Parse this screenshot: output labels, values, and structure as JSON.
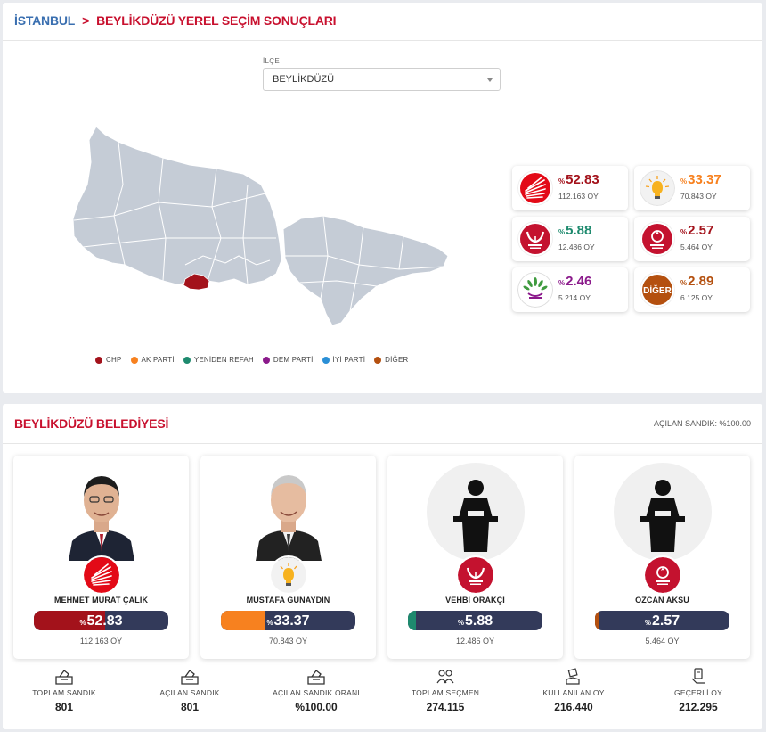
{
  "breadcrumb": {
    "city": "İSTANBUL",
    "separator": ">",
    "title": "BEYLİKDÜZÜ YEREL SEÇİM SONUÇLARI"
  },
  "district_select": {
    "label": "İLÇE",
    "value": "BEYLİKDÜZÜ"
  },
  "legend": [
    {
      "label": "CHP",
      "color": "#a3121b"
    },
    {
      "label": "AK PARTİ",
      "color": "#f7811f"
    },
    {
      "label": "YENİDEN REFAH",
      "color": "#1e8a6e"
    },
    {
      "label": "DEM PARTİ",
      "color": "#8b1a8b"
    },
    {
      "label": "İYİ PARTİ",
      "color": "#2a8fd6"
    },
    {
      "label": "DİĞER",
      "color": "#b4500f"
    }
  ],
  "party_results": [
    {
      "party": "CHP",
      "pct_symbol": "%",
      "pct": "52.83",
      "votes": "112.163 OY",
      "color": "#a3121b",
      "logo": "chp-logo-icon"
    },
    {
      "party": "AK PARTİ",
      "pct_symbol": "%",
      "pct": "33.37",
      "votes": "70.843 OY",
      "color": "#f7811f",
      "logo": "akp-logo-icon"
    },
    {
      "party": "YENİDEN REFAH",
      "pct_symbol": "%",
      "pct": "5.88",
      "votes": "12.486 OY",
      "color": "#1e8a6e",
      "logo": "yrp-logo-icon"
    },
    {
      "party": "ZAFER",
      "pct_symbol": "%",
      "pct": "2.57",
      "votes": "5.464 OY",
      "color": "#a3121b",
      "logo": "zafer-logo-icon"
    },
    {
      "party": "DEM PARTİ",
      "pct_symbol": "%",
      "pct": "2.46",
      "votes": "5.214 OY",
      "color": "#8b1a8b",
      "logo": "dem-logo-icon"
    },
    {
      "party": "DİĞER",
      "pct_symbol": "%",
      "pct": "2.89",
      "votes": "6.125 OY",
      "color": "#b4500f",
      "logo": "other-logo-icon",
      "logo_text": "DİĞER"
    }
  ],
  "municipality": {
    "title": "BEYLİKDÜZÜ BELEDİYESİ",
    "opened_label": "AÇILAN SANDIK: %100.00"
  },
  "candidates": [
    {
      "name": "MEHMET MURAT ÇALIK",
      "pct_symbol": "%",
      "pct": "52.83",
      "share": 0.5283,
      "votes": "112.163 OY",
      "color": "#a3121b",
      "photo": "candidate-photo-calik",
      "logo": "chp-logo-icon"
    },
    {
      "name": "MUSTAFA GÜNAYDIN",
      "pct_symbol": "%",
      "pct": "33.37",
      "share": 0.3337,
      "votes": "70.843 OY",
      "color": "#f7811f",
      "photo": "candidate-photo-gunaydin",
      "logo": "akp-logo-icon"
    },
    {
      "name": "VEHBİ ORAKÇI",
      "pct_symbol": "%",
      "pct": "5.88",
      "share": 0.0588,
      "votes": "12.486 OY",
      "color": "#1e8a6e",
      "photo": "placeholder-person-icon",
      "logo": "yrp-logo-icon"
    },
    {
      "name": "ÖZCAN AKSU",
      "pct_symbol": "%",
      "pct": "2.57",
      "share": 0.0257,
      "votes": "5.464 OY",
      "color": "#b4500f",
      "photo": "placeholder-person-icon",
      "logo": "zafer-logo-icon"
    }
  ],
  "stats": [
    {
      "label": "TOPLAM SANDIK",
      "value": "801",
      "icon": "ballot-box-icon"
    },
    {
      "label": "AÇILAN SANDIK",
      "value": "801",
      "icon": "ballot-box-icon"
    },
    {
      "label": "AÇILAN SANDIK ORANI",
      "value": "%100.00",
      "icon": "ballot-box-icon"
    },
    {
      "label": "TOPLAM SEÇMEN",
      "value": "274.115",
      "icon": "voters-icon"
    },
    {
      "label": "KULLANILAN OY",
      "value": "216.440",
      "icon": "vote-hand-icon"
    },
    {
      "label": "GEÇERLİ OY",
      "value": "212.295",
      "icon": "valid-vote-icon"
    }
  ]
}
